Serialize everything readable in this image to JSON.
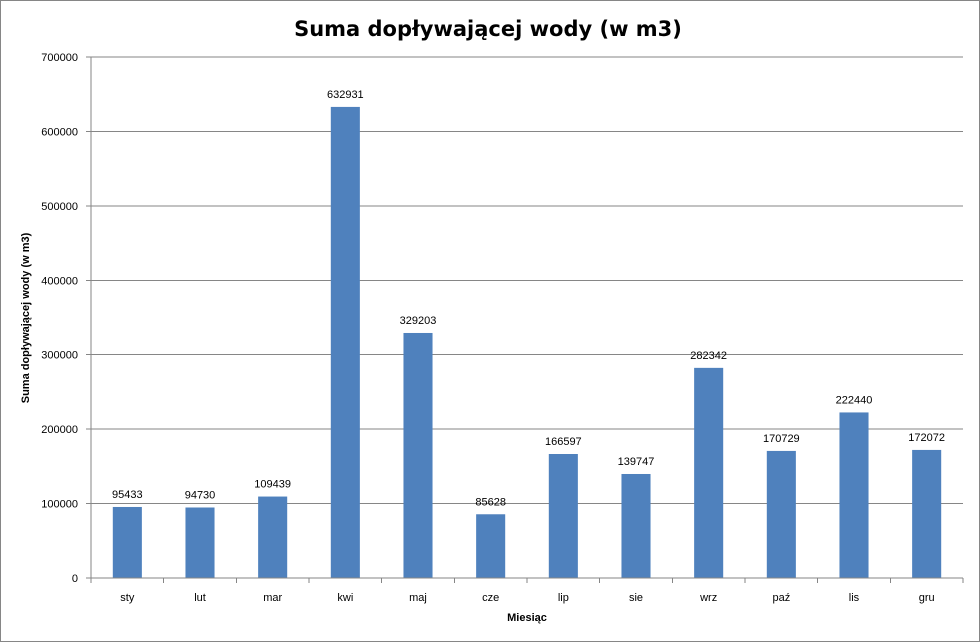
{
  "chart_data": {
    "type": "bar",
    "title": "Suma dopływającej wody (w m3)",
    "xlabel": "Miesiąc",
    "ylabel": "Suma dopływającej wody (w m3)",
    "categories": [
      "sty",
      "lut",
      "mar",
      "kwi",
      "maj",
      "cze",
      "lip",
      "sie",
      "wrz",
      "paź",
      "lis",
      "gru"
    ],
    "values": [
      95433,
      94730,
      109439,
      632931,
      329203,
      85628,
      166597,
      139747,
      282342,
      170729,
      222440,
      172072
    ],
    "data_labels": [
      "95433",
      "94730",
      "109439",
      "632931",
      "329203",
      "85628",
      "166597",
      "139747",
      "282342",
      "170729",
      "222440",
      "172072"
    ],
    "ylim": [
      0,
      700000
    ],
    "yticks": [
      0,
      100000,
      200000,
      300000,
      400000,
      500000,
      600000,
      700000
    ],
    "ytick_labels": [
      "0",
      "100000",
      "200000",
      "300000",
      "400000",
      "500000",
      "600000",
      "700000"
    ],
    "grid": true,
    "legend": "none",
    "bar_color": "#4F81BD",
    "grid_color": "#868686"
  }
}
